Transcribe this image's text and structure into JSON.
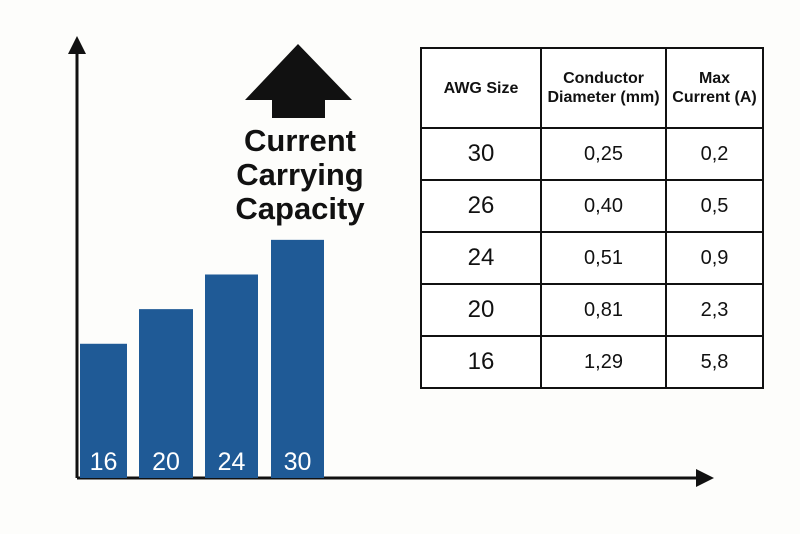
{
  "chart_data": {
    "type": "bar",
    "annotation": "Current Carrying Capacity",
    "categories": [
      "16",
      "20",
      "24",
      "30"
    ],
    "values": [
      31,
      39,
      47,
      55
    ],
    "color": "#1f5a96",
    "ylim": [
      0,
      100
    ]
  },
  "table": {
    "headers": [
      "AWG Size",
      "Conductor Diameter (mm)",
      "Max Current (A)"
    ],
    "rows": [
      [
        "30",
        "0,25",
        "0,2"
      ],
      [
        "26",
        "0,40",
        "0,5"
      ],
      [
        "24",
        "0,51",
        "0,9"
      ],
      [
        "20",
        "0,81",
        "2,3"
      ],
      [
        "16",
        "1,29",
        "5,8"
      ]
    ]
  }
}
